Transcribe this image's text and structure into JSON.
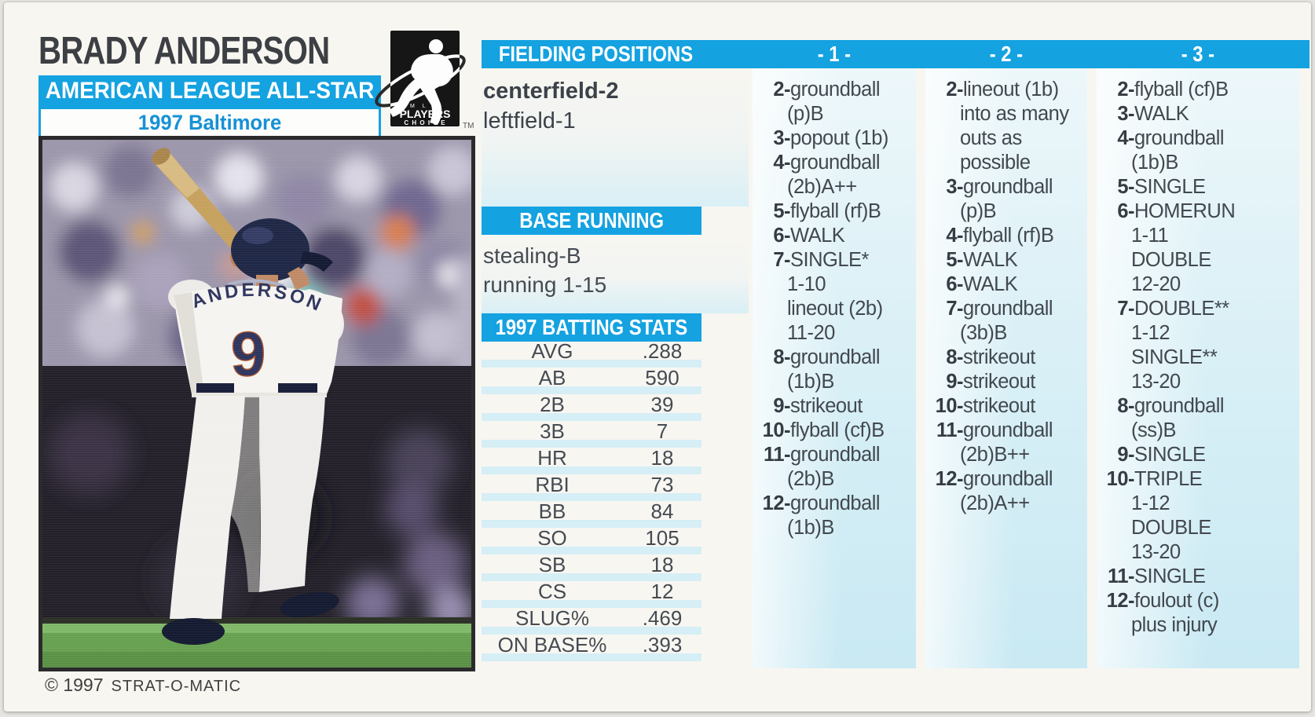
{
  "card": {
    "player_name": "BRADY ANDERSON",
    "banner": "AMERICAN LEAGUE ALL-STAR",
    "team_year": "1997 Baltimore",
    "copyright_symbol_year": "© 1997",
    "copyright_name": "STRAT-O-MATIC",
    "logo": {
      "mlb": "M L B",
      "players": "PLAYERS",
      "choice": "C H O I C E",
      "tm": "TM"
    }
  },
  "colors": {
    "accent_cyan": "#14a2e0",
    "stripe_cyan": "#d6eef6",
    "column_bg": "#c9e9f3",
    "team_blue": "#1691d6",
    "text_dark": "#454b52"
  },
  "photo": {
    "jersey_name": "ANDERSON",
    "jersey_number": "9"
  },
  "fielding": {
    "header": "FIELDING POSITIONS",
    "positions": [
      {
        "text": "centerfield-2",
        "bold": true
      },
      {
        "text": "leftfield-1",
        "bold": false
      }
    ]
  },
  "base_running": {
    "header": "BASE RUNNING",
    "lines": [
      "stealing-B",
      "running 1-15"
    ]
  },
  "batting_stats": {
    "header": "1997 BATTING STATS",
    "rows": [
      [
        "AVG",
        ".288"
      ],
      [
        "AB",
        "590"
      ],
      [
        "2B",
        "39"
      ],
      [
        "3B",
        "7"
      ],
      [
        "HR",
        "18"
      ],
      [
        "RBI",
        "73"
      ],
      [
        "BB",
        "84"
      ],
      [
        "SO",
        "105"
      ],
      [
        "SB",
        "18"
      ],
      [
        "CS",
        "12"
      ],
      [
        "SLUG%",
        ".469"
      ],
      [
        "ON BASE%",
        ".393"
      ]
    ]
  },
  "result_columns": [
    {
      "label": "- 1 -",
      "entries": [
        {
          "n": "2",
          "lines": [
            "groundball",
            "(p)B"
          ]
        },
        {
          "n": "3",
          "lines": [
            "popout (1b)"
          ]
        },
        {
          "n": "4",
          "lines": [
            "groundball",
            "(2b)A++"
          ]
        },
        {
          "n": "5",
          "lines": [
            "flyball (rf)B"
          ]
        },
        {
          "n": "6",
          "lines": [
            "WALK"
          ]
        },
        {
          "n": "7",
          "lines": [
            "SINGLE*",
            "1-10",
            "lineout (2b)",
            "11-20"
          ]
        },
        {
          "n": "8",
          "lines": [
            "groundball",
            "(1b)B"
          ]
        },
        {
          "n": "9",
          "lines": [
            "strikeout"
          ]
        },
        {
          "n": "10",
          "lines": [
            "flyball (cf)B"
          ]
        },
        {
          "n": "11",
          "lines": [
            "groundball",
            "(2b)B"
          ]
        },
        {
          "n": "12",
          "lines": [
            "groundball",
            "(1b)B"
          ]
        }
      ]
    },
    {
      "label": "- 2 -",
      "entries": [
        {
          "n": "2",
          "lines": [
            "lineout (1b)",
            "into as many",
            "outs as",
            "possible"
          ]
        },
        {
          "n": "3",
          "lines": [
            "groundball",
            "(p)B"
          ]
        },
        {
          "n": "4",
          "lines": [
            "flyball (rf)B"
          ]
        },
        {
          "n": "5",
          "lines": [
            "WALK"
          ]
        },
        {
          "n": "6",
          "lines": [
            "WALK"
          ]
        },
        {
          "n": "7",
          "lines": [
            "groundball",
            "(3b)B"
          ]
        },
        {
          "n": "8",
          "lines": [
            "strikeout"
          ]
        },
        {
          "n": "9",
          "lines": [
            "strikeout"
          ]
        },
        {
          "n": "10",
          "lines": [
            "strikeout"
          ]
        },
        {
          "n": "11",
          "lines": [
            "groundball",
            "(2b)B++"
          ]
        },
        {
          "n": "12",
          "lines": [
            "groundball",
            "(2b)A++"
          ]
        }
      ]
    },
    {
      "label": "- 3 -",
      "entries": [
        {
          "n": "2",
          "lines": [
            "flyball (cf)B"
          ]
        },
        {
          "n": "3",
          "lines": [
            "WALK"
          ]
        },
        {
          "n": "4",
          "lines": [
            "groundball",
            "(1b)B"
          ]
        },
        {
          "n": "5",
          "lines": [
            "SINGLE"
          ]
        },
        {
          "n": "6",
          "lines": [
            "HOMERUN",
            "1-11",
            "DOUBLE",
            "12-20"
          ]
        },
        {
          "n": "7",
          "lines": [
            "DOUBLE**",
            "1-12",
            "SINGLE**",
            "13-20"
          ]
        },
        {
          "n": "8",
          "lines": [
            "groundball",
            "(ss)B"
          ]
        },
        {
          "n": "9",
          "lines": [
            "SINGLE"
          ]
        },
        {
          "n": "10",
          "lines": [
            "TRIPLE",
            "1-12",
            "DOUBLE",
            "13-20"
          ]
        },
        {
          "n": "11",
          "lines": [
            "SINGLE"
          ]
        },
        {
          "n": "12",
          "lines": [
            "foulout (c)",
            "plus injury"
          ]
        }
      ]
    }
  ]
}
